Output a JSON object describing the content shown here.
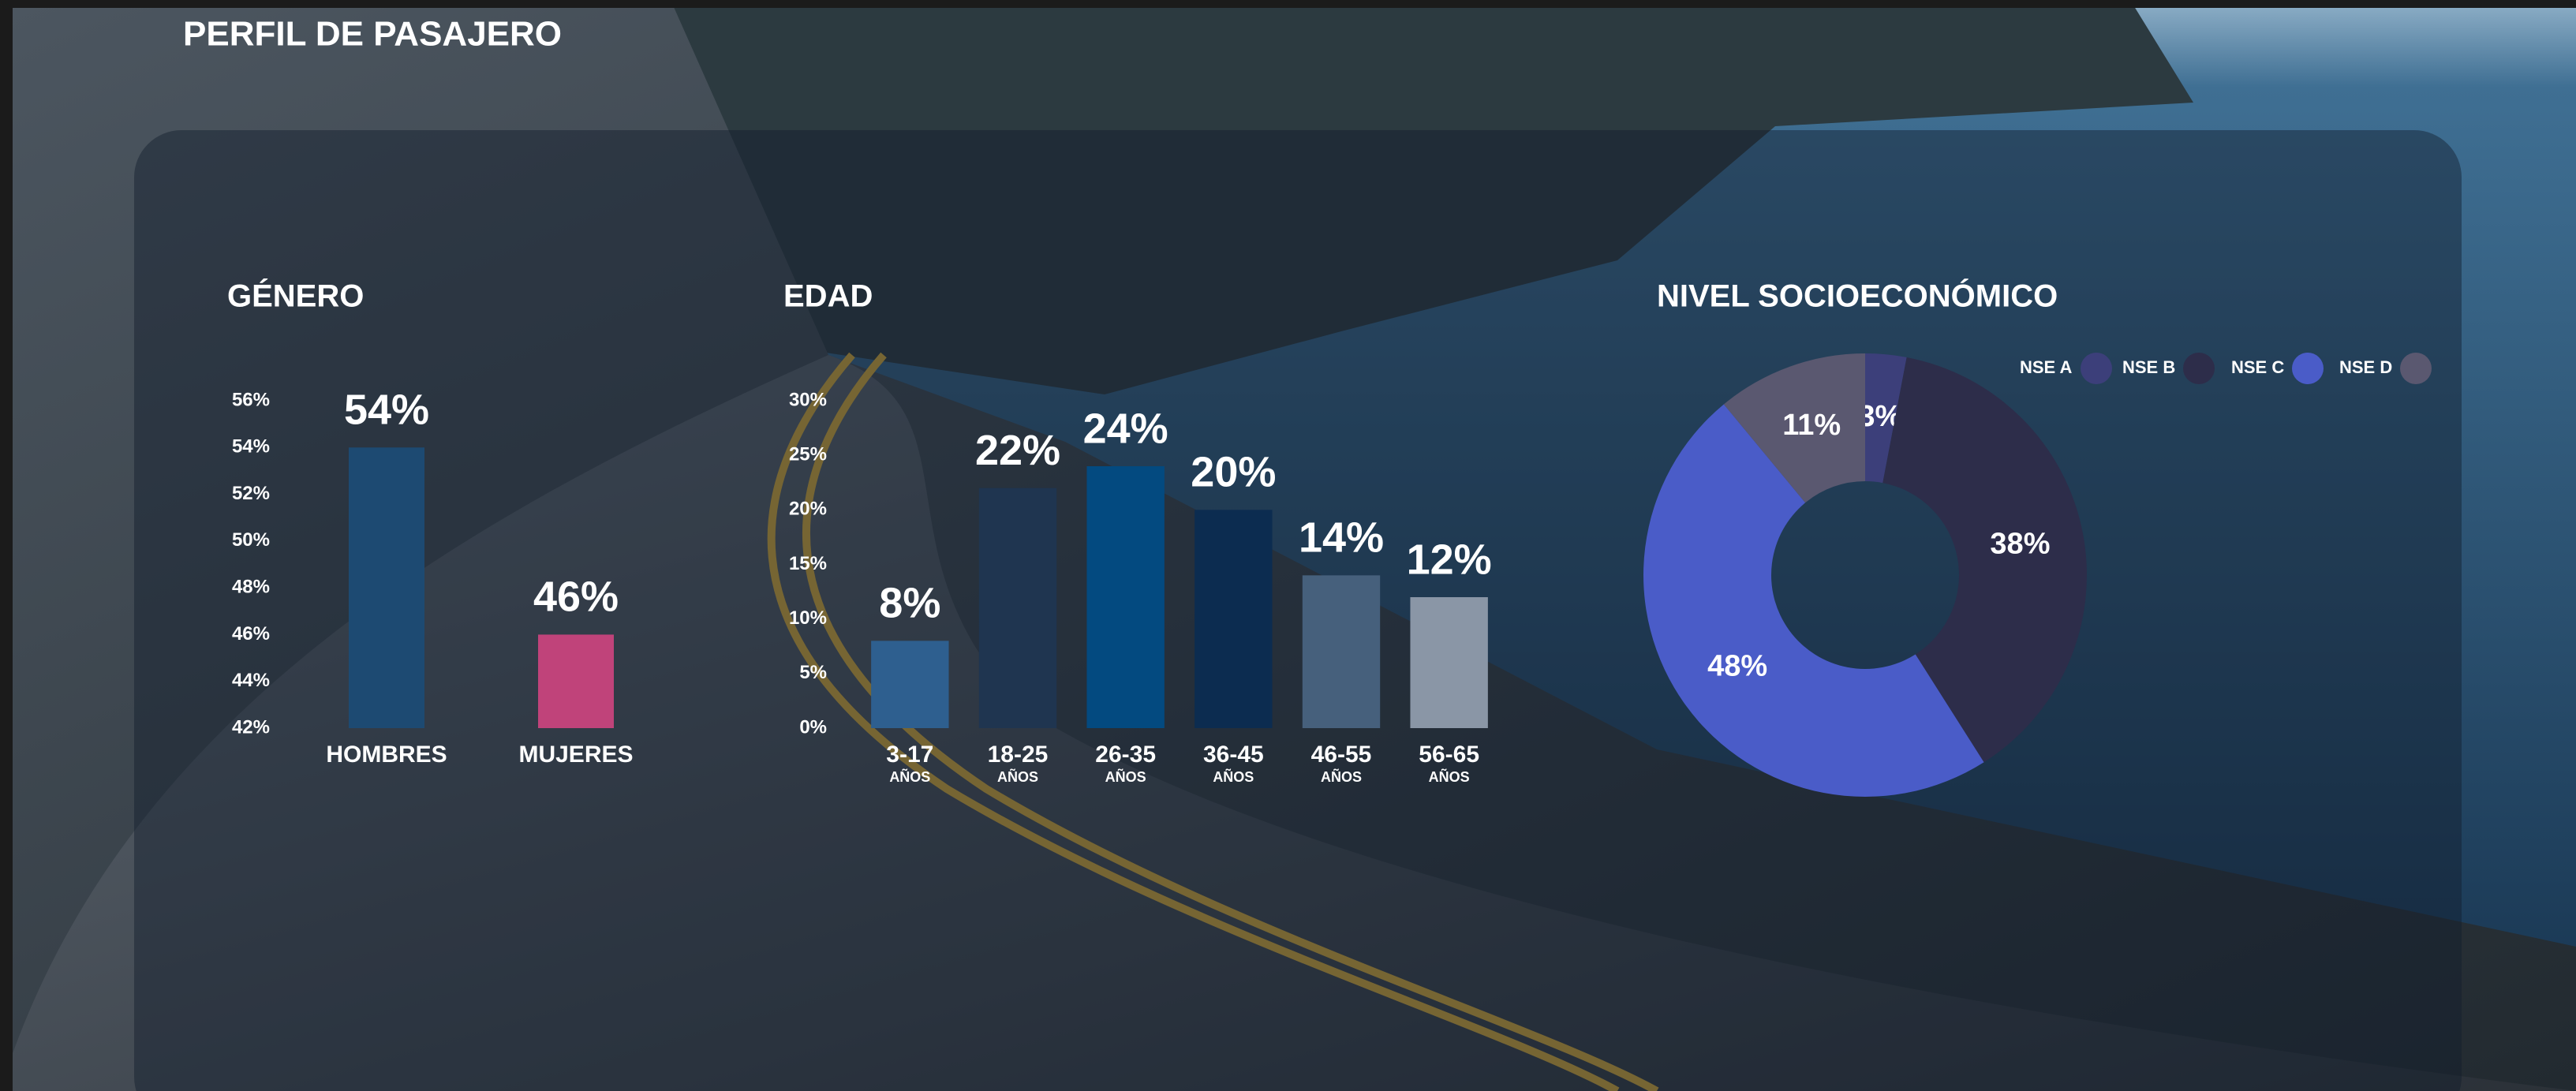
{
  "title": "PERFIL DE PASAJERO",
  "chart_data": [
    {
      "type": "bar",
      "title": "GÉNERO",
      "categories": [
        "HOMBRES",
        "MUJERES"
      ],
      "values": [
        54,
        46
      ],
      "value_labels": [
        "54%",
        "46%"
      ],
      "colors": [
        "#1d4a72",
        "#c0437a"
      ],
      "ylim": [
        42,
        56
      ],
      "yticks": [
        {
          "value": 42,
          "label": "42%"
        },
        {
          "value": 44,
          "label": "44%"
        },
        {
          "value": 46,
          "label": "46%"
        },
        {
          "value": 48,
          "label": "48%"
        },
        {
          "value": 50,
          "label": "50%"
        },
        {
          "value": 52,
          "label": "52%"
        },
        {
          "value": 54,
          "label": "54%"
        },
        {
          "value": 56,
          "label": "56%"
        }
      ]
    },
    {
      "type": "bar",
      "title": "EDAD",
      "categories": [
        "3-17",
        "18-25",
        "26-35",
        "36-45",
        "46-55",
        "56-65"
      ],
      "category_note": "AÑOS",
      "values": [
        8,
        22,
        24,
        20,
        14,
        12
      ],
      "value_labels": [
        "8%",
        "22%",
        "24%",
        "20%",
        "14%",
        "12%"
      ],
      "colors": [
        "#2e5f8f",
        "#1f3550",
        "#034a80",
        "#0c2c50",
        "#46607c",
        "#8a96a6"
      ],
      "ylim": [
        0,
        30
      ],
      "yticks": [
        {
          "value": 0,
          "label": "0%"
        },
        {
          "value": 5,
          "label": "5%"
        },
        {
          "value": 10,
          "label": "10%"
        },
        {
          "value": 15,
          "label": "15%"
        },
        {
          "value": 20,
          "label": "20%"
        },
        {
          "value": 25,
          "label": "25%"
        },
        {
          "value": 30,
          "label": "30%"
        }
      ]
    },
    {
      "type": "donut",
      "title": "NIVEL SOCIOECONÓMICO",
      "categories": [
        "NSE A",
        "NSE B",
        "NSE C",
        "NSE D"
      ],
      "values": [
        3,
        38,
        48,
        11
      ],
      "value_labels": [
        "3%",
        "38%",
        "48%",
        "11%"
      ],
      "colors": [
        "#3c3f7a",
        "#2d2d4a",
        "#4a5cc8",
        "#5a5870"
      ]
    }
  ]
}
